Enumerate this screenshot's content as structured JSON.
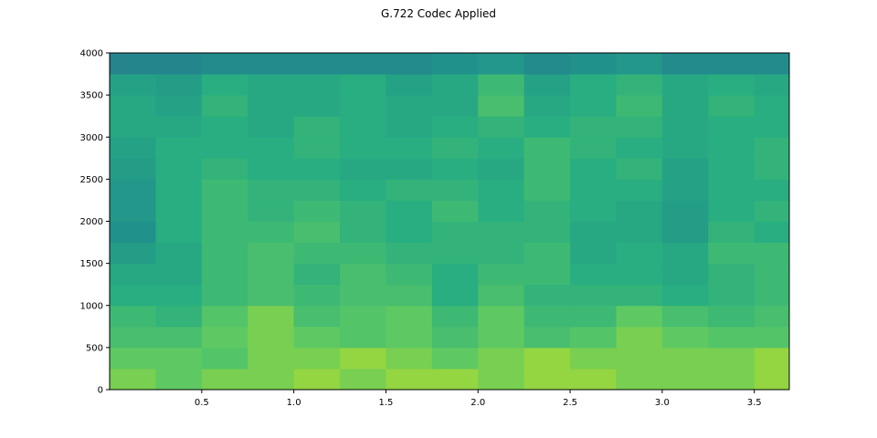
{
  "chart_data": {
    "type": "heatmap",
    "title": "G.722 Codec Applied",
    "xlabel": "",
    "ylabel": "",
    "xlim": [
      0,
      3.69
    ],
    "ylim": [
      0,
      4000
    ],
    "grid": false,
    "colormap": "viridis",
    "xticks": [
      "0.5",
      "1.0",
      "1.5",
      "2.0",
      "2.5",
      "3.0",
      "3.5"
    ],
    "yticks": [
      "0",
      "500",
      "1000",
      "1500",
      "2000",
      "2500",
      "3000",
      "3500",
      "4000"
    ],
    "time_bins": [
      0,
      0.25,
      0.5,
      0.75,
      1.0,
      1.25,
      1.5,
      1.75,
      2.0,
      2.25,
      2.5,
      2.75,
      3.0,
      3.25,
      3.5,
      3.69
    ],
    "freq_bins": [
      0,
      250,
      500,
      750,
      1000,
      1250,
      1500,
      1750,
      2000,
      2250,
      2500,
      2750,
      3000,
      3250,
      3500,
      3750,
      4000
    ],
    "relative_intensity_by_freq_row": [
      [
        0.8,
        0.75,
        0.8,
        0.8,
        0.85,
        0.8,
        0.85,
        0.85,
        0.8,
        0.85,
        0.85,
        0.8,
        0.8,
        0.8,
        0.85
      ],
      [
        0.75,
        0.75,
        0.7,
        0.8,
        0.8,
        0.85,
        0.8,
        0.75,
        0.8,
        0.85,
        0.8,
        0.8,
        0.8,
        0.8,
        0.85
      ],
      [
        0.65,
        0.65,
        0.75,
        0.8,
        0.75,
        0.7,
        0.75,
        0.65,
        0.75,
        0.65,
        0.7,
        0.8,
        0.75,
        0.7,
        0.7
      ],
      [
        0.6,
        0.55,
        0.7,
        0.8,
        0.65,
        0.7,
        0.75,
        0.6,
        0.75,
        0.6,
        0.6,
        0.75,
        0.65,
        0.6,
        0.65
      ],
      [
        0.5,
        0.5,
        0.6,
        0.65,
        0.6,
        0.65,
        0.65,
        0.5,
        0.65,
        0.55,
        0.55,
        0.55,
        0.5,
        0.55,
        0.6
      ],
      [
        0.45,
        0.45,
        0.6,
        0.65,
        0.55,
        0.65,
        0.6,
        0.5,
        0.6,
        0.6,
        0.5,
        0.5,
        0.45,
        0.55,
        0.6
      ],
      [
        0.35,
        0.45,
        0.6,
        0.65,
        0.6,
        0.6,
        0.55,
        0.55,
        0.55,
        0.6,
        0.45,
        0.5,
        0.45,
        0.6,
        0.6
      ],
      [
        0.25,
        0.5,
        0.6,
        0.6,
        0.65,
        0.55,
        0.5,
        0.55,
        0.55,
        0.55,
        0.45,
        0.45,
        0.35,
        0.55,
        0.5
      ],
      [
        0.3,
        0.5,
        0.6,
        0.55,
        0.6,
        0.55,
        0.5,
        0.6,
        0.5,
        0.55,
        0.5,
        0.45,
        0.35,
        0.5,
        0.55
      ],
      [
        0.3,
        0.5,
        0.6,
        0.55,
        0.55,
        0.5,
        0.55,
        0.55,
        0.5,
        0.6,
        0.5,
        0.5,
        0.4,
        0.5,
        0.5
      ],
      [
        0.35,
        0.5,
        0.55,
        0.5,
        0.5,
        0.45,
        0.45,
        0.5,
        0.45,
        0.6,
        0.5,
        0.55,
        0.4,
        0.5,
        0.55
      ],
      [
        0.4,
        0.5,
        0.5,
        0.5,
        0.55,
        0.5,
        0.5,
        0.55,
        0.5,
        0.6,
        0.55,
        0.5,
        0.45,
        0.5,
        0.55
      ],
      [
        0.45,
        0.45,
        0.5,
        0.45,
        0.55,
        0.5,
        0.45,
        0.5,
        0.55,
        0.5,
        0.55,
        0.55,
        0.45,
        0.5,
        0.5
      ],
      [
        0.45,
        0.4,
        0.55,
        0.45,
        0.45,
        0.5,
        0.45,
        0.45,
        0.65,
        0.45,
        0.5,
        0.6,
        0.45,
        0.55,
        0.5
      ],
      [
        0.4,
        0.35,
        0.5,
        0.45,
        0.45,
        0.5,
        0.4,
        0.45,
        0.6,
        0.4,
        0.5,
        0.55,
        0.45,
        0.5,
        0.45
      ],
      [
        0.15,
        0.15,
        0.2,
        0.2,
        0.2,
        0.2,
        0.2,
        0.25,
        0.3,
        0.2,
        0.25,
        0.3,
        0.2,
        0.2,
        0.2
      ]
    ]
  }
}
